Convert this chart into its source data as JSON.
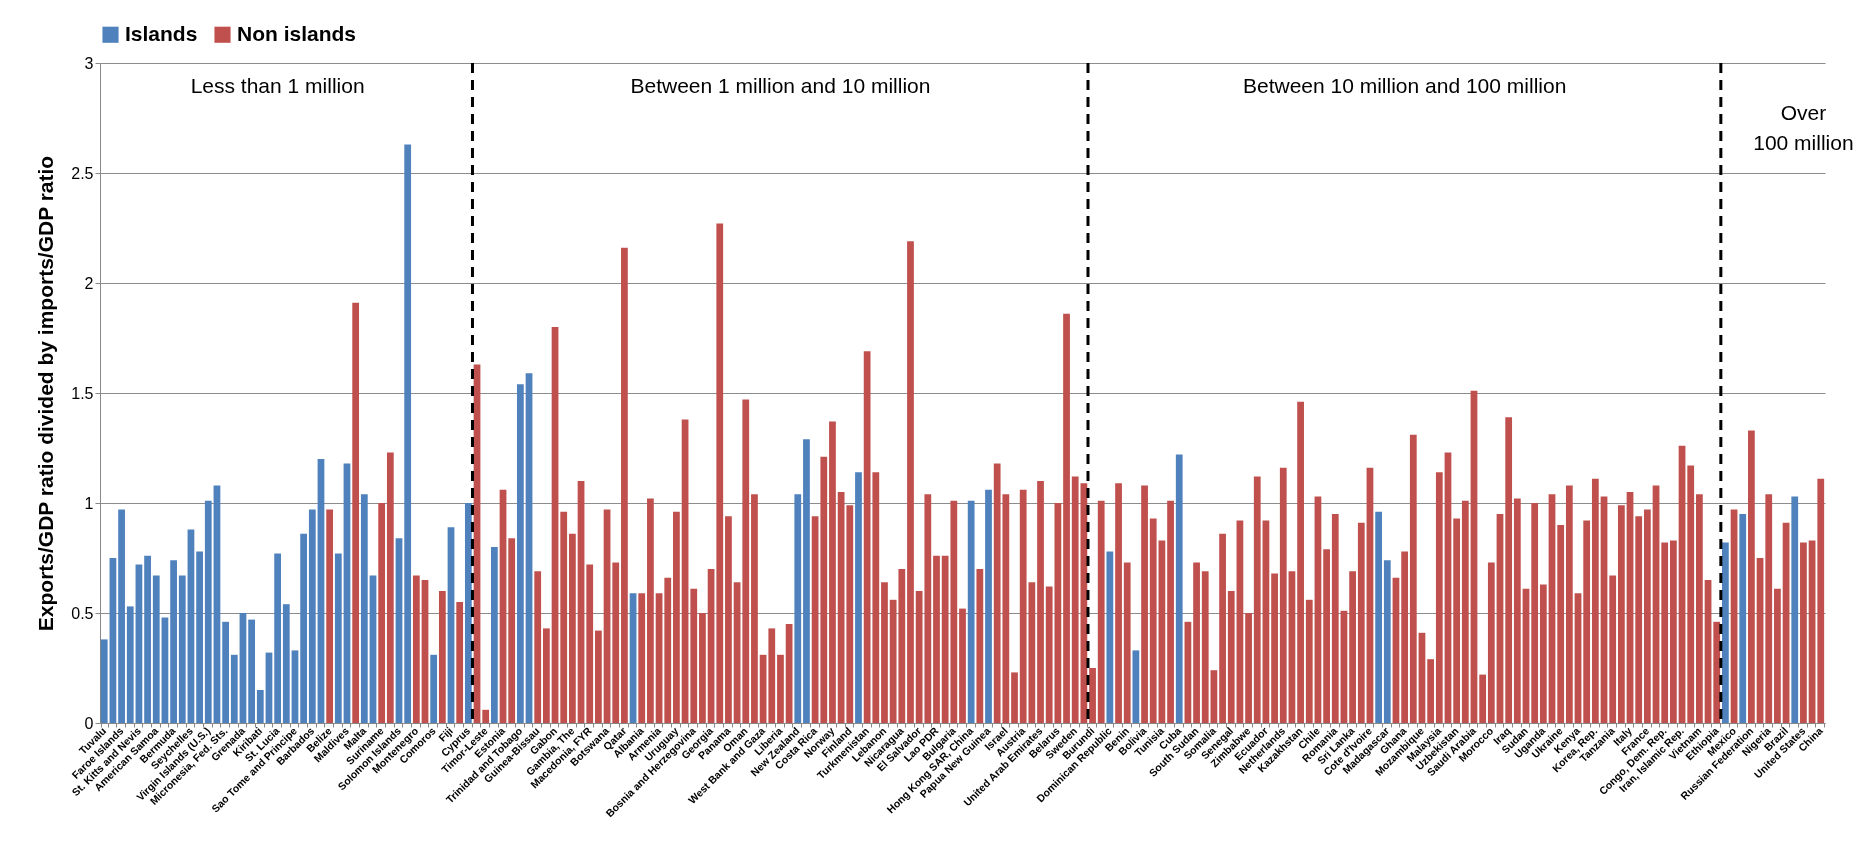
{
  "chart_data": {
    "type": "bar",
    "ylabel": "Exports/GDP ratio divided by imports/GDP ratio",
    "categories": [
      "Tuvalu",
      null,
      "Faroe Islands",
      null,
      "St. Kitts and Nevis",
      null,
      "American Samoa",
      null,
      "Bermuda",
      null,
      "Seychelles",
      null,
      "Virgin Islands (U.S.)",
      null,
      "Micronesia, Fed. Sts.",
      null,
      "Grenada",
      null,
      "Kiribati",
      null,
      "St. Lucia",
      null,
      "Sao Tome and Principe",
      null,
      "Barbados",
      null,
      "Belize",
      null,
      "Maldives",
      null,
      "Malta",
      null,
      "Suriname",
      null,
      "Solomon Islands",
      null,
      "Montenegro",
      null,
      "Comoros",
      null,
      "Fiji",
      null,
      "Cyprus",
      null,
      "Timor-Leste",
      null,
      "Estonia",
      null,
      "Trinidad and Tobago",
      null,
      "Guinea-Bissau",
      null,
      "Gabon",
      null,
      "Gambia, The",
      null,
      "Macedonia, FYR",
      null,
      "Botswana",
      null,
      "Qatar",
      null,
      "Albania",
      null,
      "Armenia",
      null,
      "Uruguay",
      null,
      "Bosnia and Herzegovina",
      null,
      "Georgia",
      null,
      "Panama",
      null,
      "Oman",
      null,
      "West Bank and Gaza",
      null,
      "Liberia",
      null,
      "New Zealand",
      null,
      "Costa Rica",
      null,
      "Norway",
      null,
      "Finland",
      null,
      "Turkmenistan",
      null,
      "Lebanon",
      null,
      "Nicaragua",
      null,
      "El Salvador",
      null,
      "Lao PDR",
      null,
      "Bulgaria",
      null,
      "Hong Kong SAR, China",
      null,
      "Papua New Guinea",
      null,
      "Israel",
      null,
      "Austria",
      null,
      "United Arab Emirates",
      null,
      "Belarus",
      null,
      "Sweden",
      null,
      "Burundi",
      null,
      "Dominican Republic",
      null,
      "Benin",
      null,
      "Bolivia",
      null,
      "Tunisia",
      null,
      "Cuba",
      null,
      "South Sudan",
      null,
      "Somalia",
      null,
      "Senegal",
      null,
      "Zimbabwe",
      null,
      "Ecuador",
      null,
      "Netherlands",
      null,
      "Kazakhstan",
      null,
      "Chile",
      null,
      "Romania",
      null,
      "Sri Lanka",
      null,
      "Cote d'Ivoire",
      null,
      "Madagascar",
      null,
      "Ghana",
      null,
      "Mozambique",
      null,
      "Malaysia",
      null,
      "Uzbekistan",
      null,
      "Saudi Arabia",
      null,
      "Morocco",
      null,
      "Iraq",
      null,
      "Sudan",
      null,
      "Uganda",
      null,
      "Ukraine",
      null,
      "Kenya",
      null,
      "Korea, Rep.",
      null,
      "Tanzania",
      null,
      "Italy",
      null,
      "France",
      null,
      "Congo, Dem. Rep.",
      null,
      "Iran, Islamic Rep.",
      null,
      "Vietnam",
      null,
      "Ethiopia",
      null,
      "Mexico",
      null,
      "Russian Federation",
      null,
      "Nigeria",
      null,
      "Brazil",
      null,
      "United States",
      null,
      "China"
    ],
    "series": [
      {
        "name": "Islands",
        "color": "#4f81bd",
        "values": [
          0.38,
          0.75,
          0.97,
          0.53,
          0.72,
          0.76,
          0.67,
          0.48,
          0.74,
          0.67,
          0.88,
          0.78,
          1.01,
          1.08,
          0.46,
          0.31,
          0.5,
          0.47,
          0.15,
          0.32,
          0.77,
          0.54,
          0.33,
          0.86,
          0.97,
          1.2,
          null,
          0.77,
          1.18,
          null,
          1.04,
          0.67,
          null,
          null,
          0.84,
          2.63,
          null,
          null,
          0.31,
          null,
          0.89,
          null,
          1.0,
          null,
          null,
          0.8,
          null,
          null,
          1.54,
          1.59,
          null,
          null,
          null,
          null,
          null,
          null,
          null,
          null,
          null,
          null,
          null,
          0.59,
          null,
          null,
          null,
          null,
          null,
          null,
          null,
          null,
          null,
          null,
          null,
          null,
          null,
          null,
          null,
          null,
          null,
          null,
          1.04,
          1.29,
          null,
          null,
          null,
          null,
          null,
          1.14,
          null,
          null,
          null,
          null,
          null,
          null,
          null,
          null,
          null,
          null,
          null,
          null,
          1.01,
          null,
          1.06,
          null,
          null,
          null,
          null,
          null,
          null,
          null,
          null,
          null,
          null,
          null,
          null,
          null,
          0.78,
          null,
          null,
          0.33,
          null,
          null,
          null,
          null,
          1.22,
          null,
          null,
          null,
          null,
          null,
          null,
          null,
          null,
          null,
          null,
          null,
          null,
          null,
          null,
          null,
          null,
          null,
          null,
          null,
          null,
          null,
          null,
          0.96,
          0.74,
          null,
          null,
          null,
          null,
          null,
          null,
          null,
          null,
          null,
          null,
          null,
          null,
          null,
          null,
          null,
          null,
          null,
          null,
          null,
          null,
          null,
          null,
          null,
          null,
          null,
          null,
          null,
          null,
          null,
          null,
          null,
          null,
          null,
          null,
          null,
          null,
          null,
          null,
          0.82,
          null,
          0.95,
          null,
          null,
          null,
          null,
          null,
          1.03,
          null,
          null,
          null
        ]
      },
      {
        "name": "Non islands",
        "color": "#c0504d",
        "values": [
          null,
          null,
          null,
          null,
          null,
          null,
          null,
          null,
          null,
          null,
          null,
          null,
          null,
          null,
          null,
          null,
          null,
          null,
          null,
          null,
          null,
          null,
          null,
          null,
          null,
          null,
          0.97,
          null,
          null,
          1.91,
          null,
          null,
          1.0,
          1.23,
          null,
          null,
          0.67,
          0.65,
          null,
          0.6,
          null,
          0.55,
          null,
          1.63,
          0.06,
          null,
          1.06,
          0.84,
          null,
          null,
          0.69,
          0.43,
          1.8,
          0.96,
          0.86,
          1.1,
          0.72,
          0.42,
          0.97,
          0.73,
          2.16,
          null,
          0.59,
          1.02,
          0.59,
          0.66,
          0.96,
          1.38,
          0.61,
          0.5,
          0.7,
          2.27,
          0.94,
          0.64,
          1.47,
          1.04,
          0.31,
          0.43,
          0.31,
          0.45,
          null,
          null,
          0.94,
          1.21,
          1.37,
          1.05,
          0.99,
          null,
          1.69,
          1.14,
          0.64,
          0.56,
          0.7,
          2.19,
          0.6,
          1.04,
          0.76,
          0.76,
          1.01,
          0.52,
          null,
          0.7,
          null,
          1.18,
          1.04,
          0.23,
          1.06,
          0.64,
          1.1,
          0.62,
          1.0,
          1.86,
          1.12,
          1.09,
          0.25,
          1.01,
          null,
          1.09,
          0.73,
          null,
          1.08,
          0.93,
          0.83,
          1.01,
          null,
          0.46,
          0.73,
          0.69,
          0.24,
          0.86,
          0.6,
          0.92,
          0.5,
          1.12,
          0.92,
          0.68,
          1.16,
          0.69,
          1.46,
          0.56,
          1.03,
          0.79,
          0.95,
          0.51,
          0.69,
          0.91,
          1.16,
          null,
          null,
          0.66,
          0.78,
          1.31,
          0.41,
          0.29,
          1.14,
          1.23,
          0.93,
          1.01,
          1.51,
          0.22,
          0.73,
          0.95,
          1.39,
          1.02,
          0.61,
          1.0,
          0.63,
          1.04,
          0.9,
          1.08,
          0.59,
          0.92,
          1.11,
          1.03,
          0.67,
          0.99,
          1.05,
          0.94,
          0.97,
          1.08,
          0.82,
          0.83,
          1.26,
          1.17,
          1.04,
          0.65,
          0.46,
          null,
          0.97,
          null,
          1.33,
          0.75,
          1.04,
          0.61,
          0.91,
          null,
          0.82,
          0.83,
          1.11
        ]
      }
    ],
    "ylim": [
      0,
      3
    ],
    "yticks": [
      0,
      0.5,
      1,
      1.5,
      2,
      2.5,
      3
    ],
    "grid": "y",
    "legend": "top",
    "annotations": [
      "Less than 1 million",
      "Between 1 million and 10 million",
      "Between 10 million and 100 million",
      "Over\n100 million"
    ]
  }
}
